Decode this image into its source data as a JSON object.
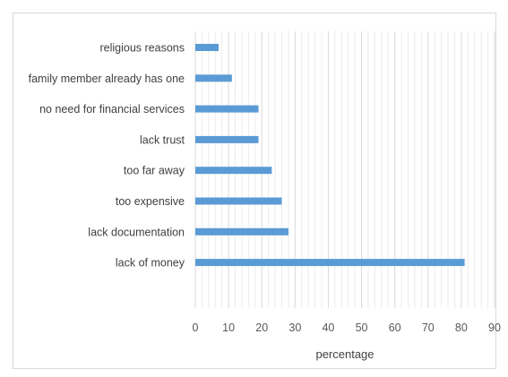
{
  "chart_data": {
    "type": "bar",
    "orientation": "horizontal",
    "title": "",
    "categories": [
      "religious reasons",
      "family member already has one",
      "no need for financial services",
      "lack trust",
      "too far away",
      "too expensive",
      "lack documentation",
      "lack of money"
    ],
    "values": [
      7,
      11,
      19,
      19,
      23,
      26,
      28,
      81
    ],
    "xlabel": "percentage",
    "ylabel": "",
    "xlim": [
      0,
      90
    ],
    "xticks": [
      "0",
      "10",
      "20",
      "30",
      "40",
      "50",
      "60",
      "70",
      "80",
      "90"
    ],
    "grid": true,
    "bar_color": "#5b9bd5",
    "legend": "none"
  }
}
